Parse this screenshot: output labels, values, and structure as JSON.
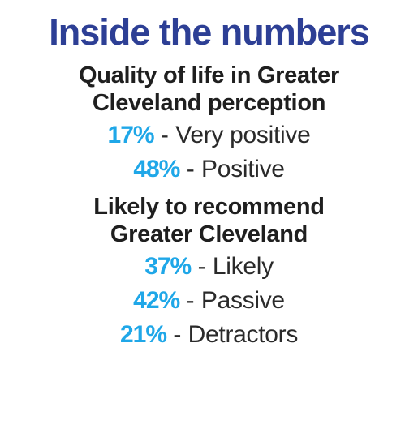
{
  "title": "Inside the numbers",
  "sections": [
    {
      "heading_lines": [
        "Quality of life in Greater",
        "Cleveland perception"
      ],
      "stats": [
        {
          "value": "17%",
          "separator": " - ",
          "label": "Very positive"
        },
        {
          "value": "48%",
          "separator": " - ",
          "label": "Positive"
        }
      ]
    },
    {
      "heading_lines": [
        "Likely to recommend",
        "Greater Cleveland"
      ],
      "stats": [
        {
          "value": "37%",
          "separator": " - ",
          "label": "Likely"
        },
        {
          "value": "42%",
          "separator": " - ",
          "label": "Passive"
        },
        {
          "value": "21%",
          "separator": " - ",
          "label": "Detractors"
        }
      ]
    }
  ],
  "colors": {
    "title": "#2d3f95",
    "accent": "#1fa7e8",
    "text": "#1f1f1f"
  }
}
